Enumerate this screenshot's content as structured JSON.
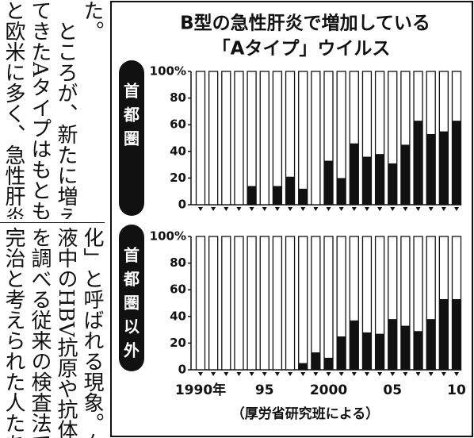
{
  "article": {
    "upper_columns": [
      "た。",
      "　ところが、新たに増え",
      "てきたAタイプはもとも",
      "と欧米に多く、急性肝炎"
    ],
    "lower_columns": [
      "化」と呼ばれる現象。血",
      "液中のHBV抗原や抗体",
      "を調べる従来の検査法で",
      "完治と考えられた人たち"
    ]
  },
  "figure": {
    "title": [
      "B型の急性肝炎で増加している",
      "「Aタイプ」ウイルス"
    ],
    "source": "（厚労省研究班による）"
  },
  "chart_data": [
    {
      "type": "bar",
      "panel_label": "首都圏",
      "color": "#111111",
      "categories": [
        "1990年",
        null,
        null,
        null,
        null,
        "95",
        null,
        null,
        null,
        null,
        "2000",
        null,
        null,
        null,
        null,
        "05",
        null,
        null,
        null,
        null,
        "10"
      ],
      "values": [
        0,
        0,
        0,
        0,
        14,
        0,
        14,
        21,
        12,
        0,
        33,
        20,
        46,
        36,
        38,
        31,
        45,
        63,
        53,
        55,
        63
      ],
      "ylim": [
        0,
        100
      ],
      "yticks": [
        0,
        20,
        40,
        60,
        80,
        {
          "value": 100,
          "label": "100%"
        }
      ]
    },
    {
      "type": "bar",
      "panel_label": "首都圏以外",
      "color": "#111111",
      "categories": [
        "1990年",
        null,
        null,
        null,
        null,
        "95",
        null,
        null,
        null,
        null,
        "2000",
        null,
        null,
        null,
        null,
        "05",
        null,
        null,
        null,
        null,
        "10"
      ],
      "values": [
        0,
        0,
        0,
        0,
        0,
        0,
        0,
        0,
        5,
        13,
        9,
        25,
        37,
        28,
        27,
        38,
        33,
        29,
        38,
        53,
        53
      ],
      "ylim": [
        0,
        100
      ],
      "yticks": [
        0,
        20,
        40,
        60,
        80,
        {
          "value": 100,
          "label": "100%"
        }
      ]
    }
  ]
}
